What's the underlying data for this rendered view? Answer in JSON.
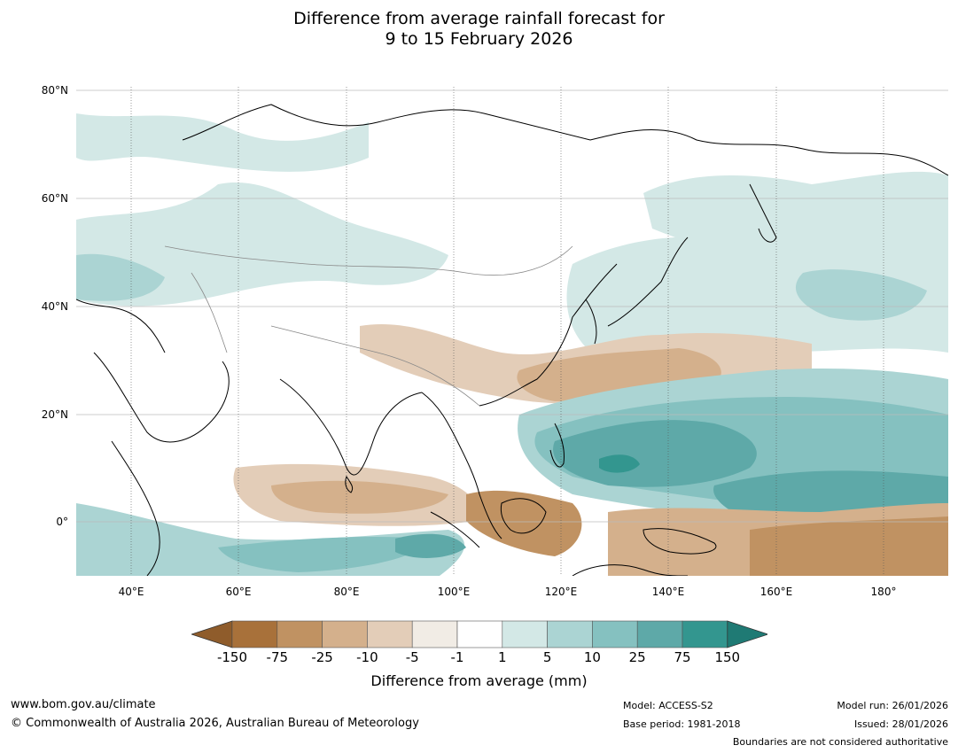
{
  "title": {
    "line1": "Difference from average rainfall forecast for",
    "line2": "9 to 15 February 2026"
  },
  "map": {
    "lat_labels": [
      "80°N",
      "60°N",
      "40°N",
      "20°N",
      "0°"
    ],
    "lon_labels": [
      "40°E",
      "60°E",
      "80°E",
      "100°E",
      "120°E",
      "140°E",
      "160°E",
      "180°"
    ],
    "anomaly_regions": [
      {
        "name": "east-asia-north-pacific-wet",
        "class": "5 to 10"
      },
      {
        "name": "philippine-sea-wet",
        "class": "25 to 75"
      },
      {
        "name": "southern-china-dry",
        "class": "-25 to -10"
      },
      {
        "name": "indonesia-dry",
        "class": "-75 to -25"
      },
      {
        "name": "south-pacific-dry",
        "class": "-75 to -25"
      },
      {
        "name": "indian-ocean-equatorial-wet",
        "class": "10 to 25"
      },
      {
        "name": "central-asia-wet",
        "class": "1 to 5"
      }
    ]
  },
  "colorbar": {
    "title": "Difference from average (mm)",
    "ticks": [
      "-150",
      "-75",
      "-25",
      "-10",
      "-5",
      "-1",
      "1",
      "5",
      "10",
      "25",
      "75",
      "150"
    ],
    "colors": [
      "#a8713a",
      "#c09262",
      "#d4b08c",
      "#e3cdb8",
      "#f1ece5",
      "#ffffff",
      "#d3e8e6",
      "#abd4d3",
      "#85c1c0",
      "#5ea9a8",
      "#33968f"
    ],
    "under_color": "#8f5c2b",
    "over_color": "#1f7a74"
  },
  "footer": {
    "url": "www.bom.gov.au/climate",
    "copyright": "© Commonwealth of Australia 2026, Australian Bureau of Meteorology",
    "model": "Model: ACCESS-S2",
    "base_period": "Base period: 1981-2018",
    "model_run": "Model run: 26/01/2026",
    "issued": "Issued: 28/01/2026",
    "disclaimer": "Boundaries are not considered authoritative"
  }
}
